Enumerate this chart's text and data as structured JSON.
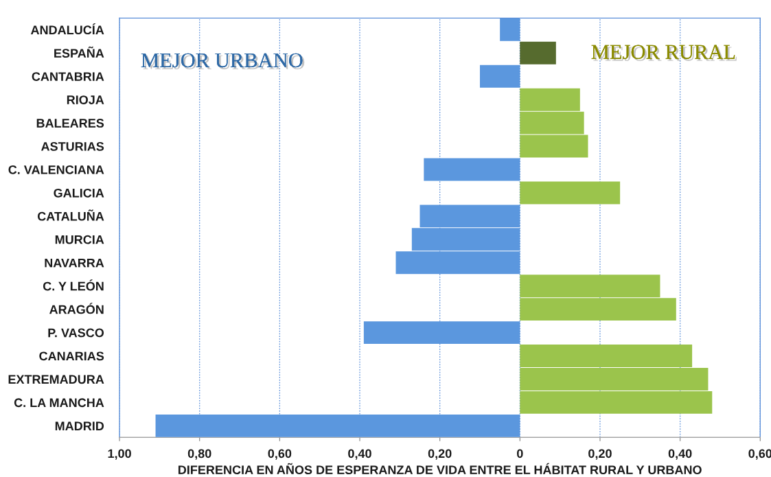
{
  "chart_data": {
    "type": "bar",
    "orientation": "horizontal",
    "categories": [
      "ANDALUCÍA",
      "ESPAÑA",
      "CANTABRIA",
      "RIOJA",
      "BALEARES",
      "ASTURIAS",
      "C. VALENCIANA",
      "GALICIA",
      "CATALUÑA",
      "MURCIA",
      "NAVARRA",
      "C. Y LEÓN",
      "ARAGÓN",
      "P. VASCO",
      "CANARIAS",
      "EXTREMADURA",
      "C. LA MANCHA",
      "MADRID"
    ],
    "values": [
      -0.05,
      0.09,
      -0.1,
      0.15,
      0.16,
      0.17,
      -0.24,
      0.25,
      -0.25,
      -0.27,
      -0.31,
      0.35,
      0.39,
      -0.39,
      0.43,
      0.47,
      0.48,
      -0.91
    ],
    "colors": [
      "#5b97de",
      "#566b2e",
      "#5b97de",
      "#9bc44c",
      "#9bc44c",
      "#9bc44c",
      "#5b97de",
      "#9bc44c",
      "#5b97de",
      "#5b97de",
      "#5b97de",
      "#9bc44c",
      "#9bc44c",
      "#5b97de",
      "#9bc44c",
      "#9bc44c",
      "#9bc44c",
      "#5b97de"
    ],
    "xlabel": "DIFERENCIA EN AÑOS DE ESPERANZA DE VIDA ENTRE EL HÁBITAT RURAL Y URBANO",
    "xlim": [
      -1,
      0.6
    ],
    "xticks": [
      {
        "value": -1,
        "label": "1,00"
      },
      {
        "value": -0.8,
        "label": "0,80"
      },
      {
        "value": -0.6,
        "label": "0,60"
      },
      {
        "value": -0.4,
        "label": "0,40"
      },
      {
        "value": -0.2,
        "label": "0,20"
      },
      0,
      {
        "value": 0.2,
        "label": "0,20"
      },
      {
        "value": 0.4,
        "label": "0,40"
      },
      {
        "value": 0.6,
        "label": "0,60"
      }
    ],
    "grid": "x",
    "annotations": [
      "MEJOR URBANO",
      "MEJOR RURAL"
    ]
  }
}
